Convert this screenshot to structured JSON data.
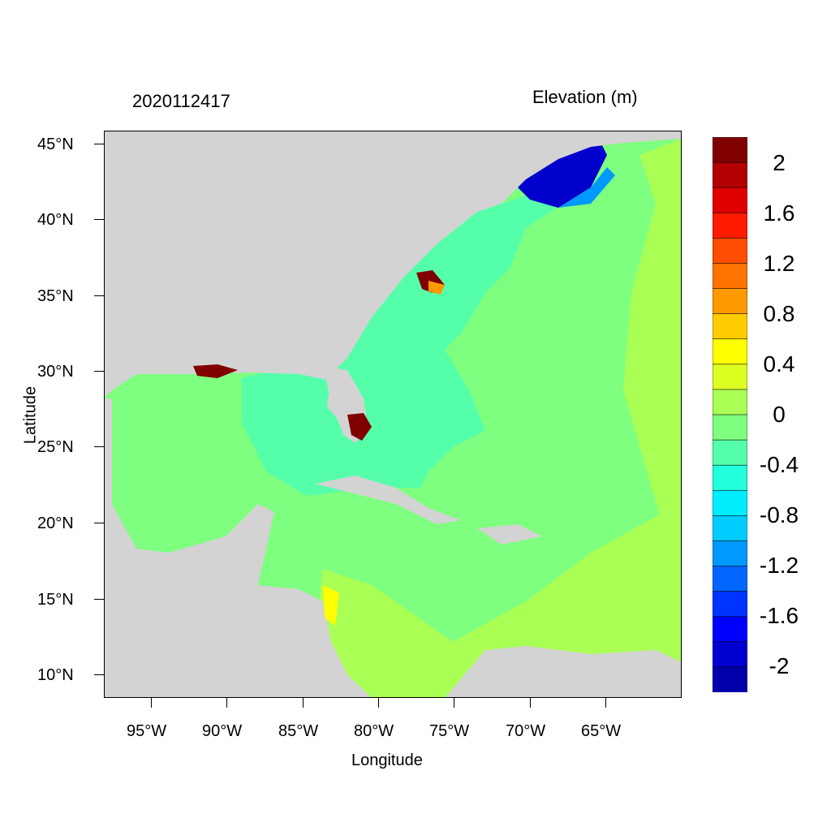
{
  "plot": {
    "timestamp": "2020112417",
    "variable_title": "Elevation (m)",
    "xlabel": "Longitude",
    "ylabel": "Latitude"
  },
  "axes": {
    "lat_ticks": [
      "45°N",
      "40°N",
      "35°N",
      "30°N",
      "25°N",
      "20°N",
      "15°N",
      "10°N"
    ],
    "lon_ticks": [
      "95°W",
      "90°W",
      "85°W",
      "80°W",
      "75°W",
      "70°W",
      "65°W"
    ]
  },
  "colorbar": {
    "colors": [
      "#800000",
      "#b30000",
      "#e00000",
      "#ff1a00",
      "#ff4d00",
      "#ff7300",
      "#ff9900",
      "#ffcc00",
      "#ffff00",
      "#ddff22",
      "#aaff55",
      "#7fff7f",
      "#55ffaa",
      "#22ffdd",
      "#00eeff",
      "#00ccff",
      "#0099ff",
      "#0066ff",
      "#0033ff",
      "#0000ff",
      "#0000d0",
      "#0000aa"
    ],
    "labels": [
      "2",
      "1.6",
      "1.2",
      "0.8",
      "0.4",
      "0",
      "-0.4",
      "-0.8",
      "-1.2",
      "-1.6",
      "-2"
    ]
  },
  "colors": {
    "land": "#d3d3d3",
    "ocean_base": "#7fff7f",
    "shelf_cyan": "#55ffaa",
    "positive_light": "#aaff55",
    "surge_high": "#800000",
    "gulf_of_maine_low": "#0000cc"
  }
}
